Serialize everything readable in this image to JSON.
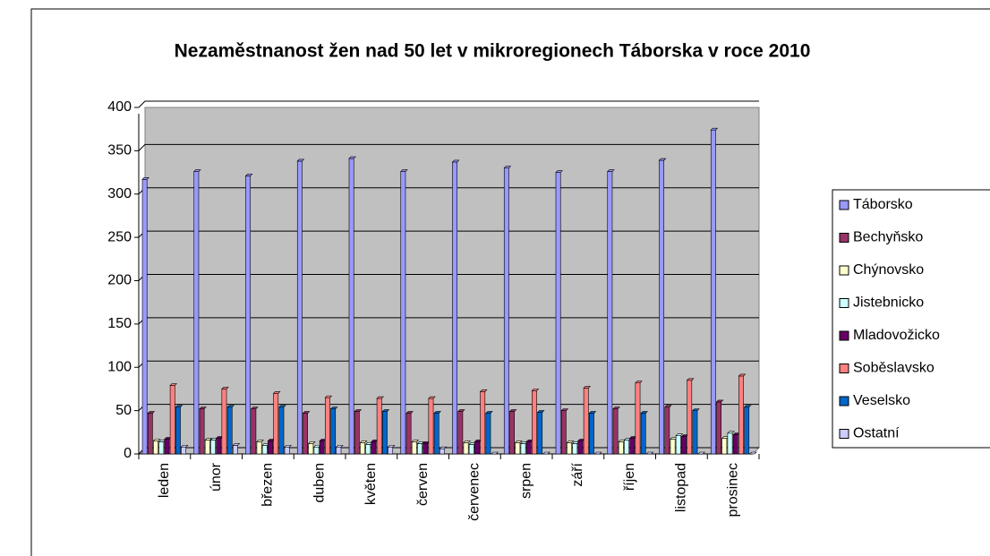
{
  "chart_data": {
    "type": "bar",
    "title": "Nezaměstnanost žen nad 50 let v mikroregionech Táborska v roce 2010",
    "categories": [
      "leden",
      "únor",
      "březen",
      "duben",
      "květen",
      "červen",
      "červenec",
      "srpen",
      "září",
      "říjen",
      "listopad",
      "prosinec"
    ],
    "series": [
      {
        "name": "Táborsko",
        "color": "#9999ff",
        "values": [
          317,
          326,
          321,
          338,
          341,
          326,
          337,
          330,
          325,
          326,
          339,
          374
        ]
      },
      {
        "name": "Bechyňsko",
        "color": "#993366",
        "values": [
          47,
          52,
          52,
          47,
          49,
          47,
          49,
          49,
          50,
          52,
          54,
          60
        ]
      },
      {
        "name": "Chýnovsko",
        "color": "#ffffcc",
        "values": [
          15,
          16,
          14,
          12,
          13,
          14,
          13,
          13,
          13,
          14,
          17,
          18
        ]
      },
      {
        "name": "Jistebnicko",
        "color": "#ccffff",
        "values": [
          14,
          16,
          10,
          8,
          11,
          12,
          11,
          12,
          12,
          16,
          21,
          24
        ]
      },
      {
        "name": "Mladovožicko",
        "color": "#660066",
        "values": [
          17,
          18,
          15,
          15,
          14,
          12,
          14,
          14,
          15,
          18,
          20,
          22
        ]
      },
      {
        "name": "Soběslavsko",
        "color": "#ff8080",
        "values": [
          79,
          75,
          70,
          65,
          64,
          64,
          72,
          73,
          76,
          82,
          85,
          90
        ]
      },
      {
        "name": "Veselsko",
        "color": "#0066cc",
        "values": [
          54,
          54,
          54,
          52,
          49,
          47,
          47,
          48,
          47,
          47,
          50,
          54
        ]
      },
      {
        "name": "Ostatní",
        "color": "#ccccff",
        "values": [
          8,
          10,
          8,
          8,
          8,
          6,
          0,
          0,
          0,
          0,
          0,
          0
        ]
      }
    ],
    "ylim": [
      0,
      400
    ],
    "yticks": [
      0,
      50,
      100,
      150,
      200,
      250,
      300,
      350,
      400
    ],
    "grid": true,
    "legend": "right"
  }
}
